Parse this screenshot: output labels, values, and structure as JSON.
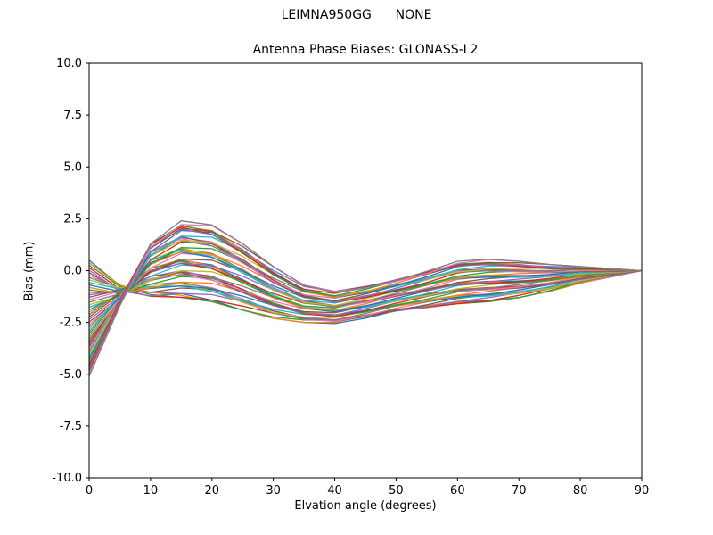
{
  "chart_data": {
    "type": "line",
    "suptitle": "LEIMNA950GG      NONE",
    "title": "Antenna Phase Biases: GLONASS-L2",
    "xlabel": "Elvation angle (degrees)",
    "ylabel": "Bias (mm)",
    "xlim": [
      0,
      90
    ],
    "ylim": [
      -10,
      10
    ],
    "grid": false,
    "legend": "none",
    "xticks": [
      0,
      10,
      20,
      30,
      40,
      50,
      60,
      70,
      80,
      90
    ],
    "xtick_labels": [
      "0",
      "10",
      "20",
      "30",
      "40",
      "50",
      "60",
      "70",
      "80",
      "90"
    ],
    "yticks": [
      -10,
      -7.5,
      -5,
      -2.5,
      0,
      2.5,
      5,
      7.5,
      10
    ],
    "ytick_labels": [
      "-10.0",
      "-7.5",
      "-5.0",
      "-2.5",
      "0.0",
      "2.5",
      "5.0",
      "7.5",
      "10.0"
    ],
    "x": [
      0,
      5,
      10,
      15,
      20,
      25,
      30,
      35,
      40,
      45,
      50,
      55,
      60,
      65,
      70,
      75,
      80,
      85,
      90
    ],
    "num_lines": 48,
    "envelope_upper": [
      0.5,
      1.2,
      2.0,
      2.4,
      2.2,
      1.3,
      0.2,
      -0.7,
      -1.0,
      -0.75,
      -0.4,
      0.0,
      0.45,
      0.55,
      0.45,
      0.3,
      0.2,
      0.1,
      0.0
    ],
    "envelope_lower": [
      -5.1,
      -3.6,
      -1.9,
      -1.3,
      -1.5,
      -1.9,
      -2.3,
      -2.5,
      -2.55,
      -2.3,
      -2.0,
      -1.8,
      -1.6,
      -1.5,
      -1.3,
      -1.0,
      -0.6,
      -0.3,
      0.0
    ],
    "line_colors": [
      "#1f77b4",
      "#ff7f0e",
      "#2ca02c",
      "#d62728",
      "#9467bd",
      "#8c564b",
      "#e377c2",
      "#7f7f7f",
      "#bcbd22",
      "#17becf"
    ]
  }
}
